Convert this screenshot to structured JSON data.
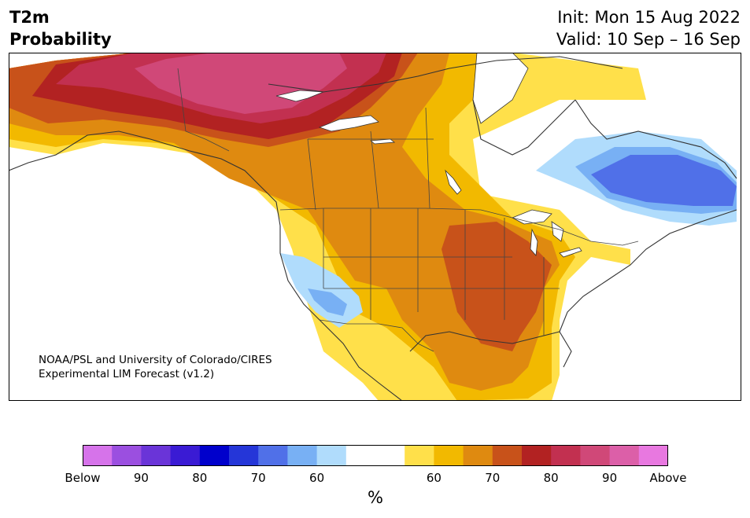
{
  "header": {
    "title_line1": "T2m",
    "title_line2": "Probability",
    "init_text": "Init: Mon 15 Aug 2022",
    "valid_text": "Valid: 10 Sep – 16 Sep"
  },
  "credit": {
    "line1": "NOAA/PSL and University of Colorado/CIRES",
    "line2": "Experimental LIM Forecast (v1.2)"
  },
  "colorbar": {
    "unit": "%",
    "colors": [
      "#d673ea",
      "#9b4fe0",
      "#6a34d8",
      "#3a1bd4",
      "#0000cc",
      "#2536d8",
      "#5070e8",
      "#78b0f4",
      "#b0dcfc",
      "#ffffff",
      "#ffffff",
      "#ffe04a",
      "#f2b900",
      "#df8a10",
      "#c8521a",
      "#b22222",
      "#c23050",
      "#d04878",
      "#dc5fa8",
      "#e878e0"
    ],
    "labels": [
      "Below",
      "90",
      "80",
      "70",
      "60",
      "60",
      "70",
      "80",
      "90",
      "Above"
    ]
  },
  "legend_colors": {
    "above_60": "#ffe04a",
    "above_65": "#f2b900",
    "above_70": "#df8a10",
    "above_75": "#c8521a",
    "above_80": "#b22222",
    "above_85": "#c23050",
    "above_90": "#d04878",
    "below_60": "#b0dcfc",
    "below_65": "#78b0f4",
    "below_70": "#5070e8"
  }
}
